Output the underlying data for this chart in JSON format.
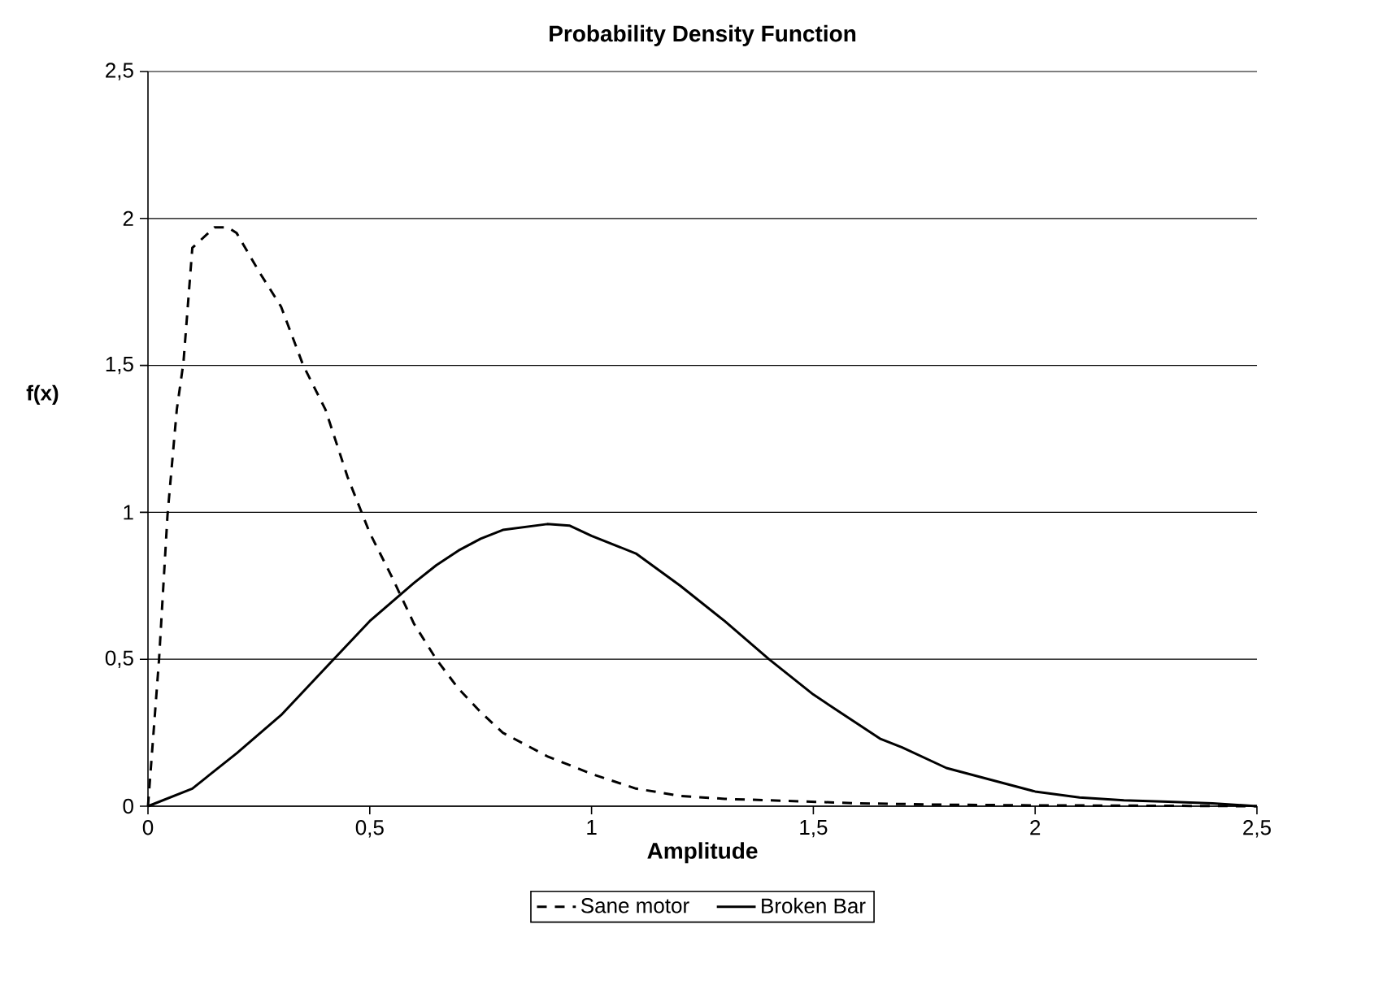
{
  "chart_data": {
    "type": "line",
    "title": "Probability Density Function",
    "xlabel": "Amplitude",
    "ylabel": "f(x)",
    "xlim": [
      0,
      2.5
    ],
    "ylim": [
      0,
      2.5
    ],
    "xticks": [
      0,
      {
        "value": 0.5,
        "label": "0,5"
      },
      1,
      {
        "value": 1.5,
        "label": "1,5"
      },
      2,
      {
        "value": 2.5,
        "label": "2,5"
      }
    ],
    "yticks": [
      0,
      {
        "value": 0.5,
        "label": "0,5"
      },
      1,
      {
        "value": 1.5,
        "label": "1,5"
      },
      2,
      {
        "value": 2.5,
        "label": "2,5"
      }
    ],
    "grid": "y",
    "legend": "bottom",
    "marker": "none",
    "series": [
      {
        "name": "Sane motor",
        "color": "#000000",
        "line_style": "dashed",
        "x": [
          0,
          0.025,
          0.044,
          0.065,
          0.08,
          0.1,
          0.15,
          0.18,
          0.2,
          0.25,
          0.3,
          0.35,
          0.4,
          0.45,
          0.5,
          0.55,
          0.6,
          0.65,
          0.7,
          0.75,
          0.8,
          0.9,
          1.0,
          1.1,
          1.2,
          1.3,
          1.4,
          1.5,
          1.6,
          1.8,
          2.0,
          2.2,
          2.5
        ],
        "values": [
          0,
          0.5,
          0.99,
          1.35,
          1.51,
          1.9,
          1.97,
          1.97,
          1.95,
          1.82,
          1.7,
          1.5,
          1.35,
          1.12,
          0.93,
          0.78,
          0.62,
          0.5,
          0.4,
          0.32,
          0.25,
          0.17,
          0.11,
          0.06,
          0.035,
          0.025,
          0.02,
          0.015,
          0.01,
          0.005,
          0.003,
          0.002,
          0
        ]
      },
      {
        "name": "Broken Bar",
        "color": "#000000",
        "line_style": "solid",
        "x": [
          0,
          0.1,
          0.2,
          0.3,
          0.4,
          0.5,
          0.6,
          0.65,
          0.7,
          0.75,
          0.8,
          0.9,
          0.95,
          1.0,
          1.1,
          1.2,
          1.3,
          1.4,
          1.5,
          1.55,
          1.6,
          1.65,
          1.7,
          1.8,
          1.9,
          2.0,
          2.1,
          2.2,
          2.3,
          2.4,
          2.5
        ],
        "values": [
          0,
          0.06,
          0.18,
          0.31,
          0.47,
          0.63,
          0.76,
          0.82,
          0.87,
          0.91,
          0.94,
          0.96,
          0.955,
          0.92,
          0.86,
          0.75,
          0.63,
          0.5,
          0.38,
          0.33,
          0.28,
          0.23,
          0.2,
          0.13,
          0.09,
          0.05,
          0.03,
          0.02,
          0.015,
          0.01,
          0
        ]
      }
    ]
  }
}
